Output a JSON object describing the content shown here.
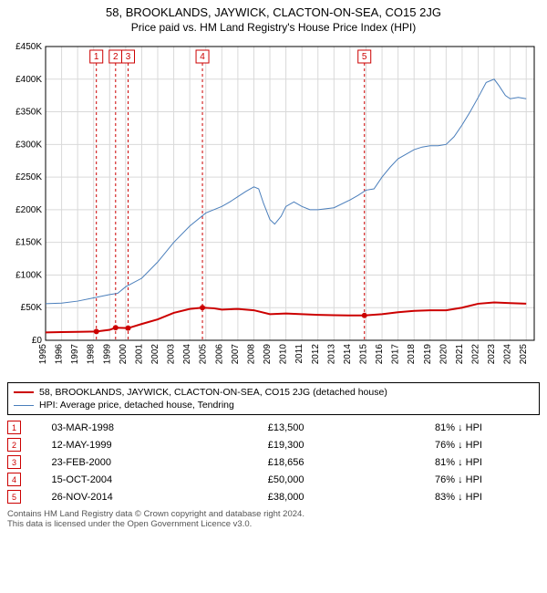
{
  "title_main": "58, BROOKLANDS, JAYWICK, CLACTON-ON-SEA, CO15 2JG",
  "title_sub": "Price paid vs. HM Land Registry's House Price Index (HPI)",
  "chart": {
    "type": "line",
    "background_color": "#ffffff",
    "grid_color": "#d9d9d9",
    "axis_color": "#000000",
    "tick_fontsize": 10,
    "xlim": [
      1995,
      2025.5
    ],
    "xtick_start": 1995,
    "xtick_end": 2025,
    "xtick_step": 1,
    "ylim": [
      0,
      450000
    ],
    "ytick_step": 50000,
    "y_prefix": "£",
    "y_suffix": "K",
    "y_scale_div": 1000,
    "marker_line_color": "#cc0000",
    "marker_line_dash": "3,3",
    "marker_box_border": "#cc0000",
    "marker_box_text": "#cc0000",
    "markers": [
      {
        "n": "1",
        "year": 1998.17
      },
      {
        "n": "2",
        "year": 1999.37
      },
      {
        "n": "3",
        "year": 2000.15
      },
      {
        "n": "4",
        "year": 2004.79
      },
      {
        "n": "5",
        "year": 2014.9
      }
    ],
    "series": [
      {
        "id": "property",
        "label": "58, BROOKLANDS, JAYWICK, CLACTON-ON-SEA, CO15 2JG (detached house)",
        "color": "#cc0000",
        "width": 2,
        "point_marker_color": "#cc0000",
        "point_marker_radius": 3,
        "data": [
          [
            1995.0,
            12000
          ],
          [
            1996.0,
            12500
          ],
          [
            1997.0,
            13000
          ],
          [
            1998.17,
            13500
          ],
          [
            1999.0,
            16000
          ],
          [
            1999.37,
            19300
          ],
          [
            2000.15,
            18656
          ],
          [
            2001.0,
            25000
          ],
          [
            2002.0,
            32000
          ],
          [
            2003.0,
            42000
          ],
          [
            2004.0,
            48000
          ],
          [
            2004.79,
            50000
          ],
          [
            2005.5,
            49000
          ],
          [
            2006.0,
            47000
          ],
          [
            2007.0,
            48000
          ],
          [
            2008.0,
            46000
          ],
          [
            2009.0,
            40000
          ],
          [
            2010.0,
            41000
          ],
          [
            2011.0,
            40000
          ],
          [
            2012.0,
            39000
          ],
          [
            2013.0,
            38500
          ],
          [
            2014.0,
            38000
          ],
          [
            2014.9,
            38000
          ],
          [
            2016.0,
            40000
          ],
          [
            2017.0,
            43000
          ],
          [
            2018.0,
            45000
          ],
          [
            2019.0,
            46000
          ],
          [
            2020.0,
            46000
          ],
          [
            2021.0,
            50000
          ],
          [
            2022.0,
            56000
          ],
          [
            2023.0,
            58000
          ],
          [
            2024.0,
            57000
          ],
          [
            2025.0,
            56000
          ]
        ],
        "sale_points": [
          [
            1998.17,
            13500
          ],
          [
            1999.37,
            19300
          ],
          [
            2000.15,
            18656
          ],
          [
            2004.79,
            50000
          ],
          [
            2014.9,
            38000
          ]
        ]
      },
      {
        "id": "hpi",
        "label": "HPI: Average price, detached house, Tendring",
        "color": "#4a7ebb",
        "width": 1,
        "data": [
          [
            1995.0,
            56000
          ],
          [
            1996.0,
            57000
          ],
          [
            1997.0,
            60000
          ],
          [
            1998.0,
            65000
          ],
          [
            1999.0,
            70000
          ],
          [
            1999.5,
            72000
          ],
          [
            2000.0,
            82000
          ],
          [
            2001.0,
            95000
          ],
          [
            2002.0,
            120000
          ],
          [
            2003.0,
            150000
          ],
          [
            2004.0,
            175000
          ],
          [
            2005.0,
            195000
          ],
          [
            2006.0,
            205000
          ],
          [
            2006.5,
            212000
          ],
          [
            2007.0,
            220000
          ],
          [
            2007.5,
            228000
          ],
          [
            2008.0,
            235000
          ],
          [
            2008.3,
            232000
          ],
          [
            2008.6,
            210000
          ],
          [
            2009.0,
            185000
          ],
          [
            2009.3,
            178000
          ],
          [
            2009.7,
            190000
          ],
          [
            2010.0,
            205000
          ],
          [
            2010.5,
            212000
          ],
          [
            2011.0,
            205000
          ],
          [
            2011.5,
            200000
          ],
          [
            2012.0,
            200000
          ],
          [
            2013.0,
            203000
          ],
          [
            2014.0,
            215000
          ],
          [
            2014.5,
            222000
          ],
          [
            2015.0,
            230000
          ],
          [
            2015.5,
            232000
          ],
          [
            2016.0,
            250000
          ],
          [
            2016.5,
            265000
          ],
          [
            2017.0,
            278000
          ],
          [
            2017.5,
            285000
          ],
          [
            2018.0,
            292000
          ],
          [
            2018.5,
            296000
          ],
          [
            2019.0,
            298000
          ],
          [
            2019.5,
            298000
          ],
          [
            2020.0,
            300000
          ],
          [
            2020.5,
            312000
          ],
          [
            2021.0,
            330000
          ],
          [
            2021.5,
            350000
          ],
          [
            2022.0,
            372000
          ],
          [
            2022.5,
            395000
          ],
          [
            2023.0,
            400000
          ],
          [
            2023.3,
            390000
          ],
          [
            2023.7,
            375000
          ],
          [
            2024.0,
            370000
          ],
          [
            2024.5,
            372000
          ],
          [
            2025.0,
            370000
          ]
        ]
      }
    ]
  },
  "legend": {
    "items": [
      {
        "color": "#cc0000",
        "width": 2,
        "text_path": "chart.series.0.label"
      },
      {
        "color": "#4a7ebb",
        "width": 1,
        "text_path": "chart.series.1.label"
      }
    ]
  },
  "sales_table": {
    "marker_border": "#cc0000",
    "marker_text": "#cc0000",
    "arrow": "↓",
    "rows": [
      {
        "n": "1",
        "date": "03-MAR-1998",
        "price": "£13,500",
        "pct": "81%",
        "rel": "HPI"
      },
      {
        "n": "2",
        "date": "12-MAY-1999",
        "price": "£19,300",
        "pct": "76%",
        "rel": "HPI"
      },
      {
        "n": "3",
        "date": "23-FEB-2000",
        "price": "£18,656",
        "pct": "81%",
        "rel": "HPI"
      },
      {
        "n": "4",
        "date": "15-OCT-2004",
        "price": "£50,000",
        "pct": "76%",
        "rel": "HPI"
      },
      {
        "n": "5",
        "date": "26-NOV-2014",
        "price": "£38,000",
        "pct": "83%",
        "rel": "HPI"
      }
    ]
  },
  "footnote_line1": "Contains HM Land Registry data © Crown copyright and database right 2024.",
  "footnote_line2": "This data is licensed under the Open Government Licence v3.0."
}
